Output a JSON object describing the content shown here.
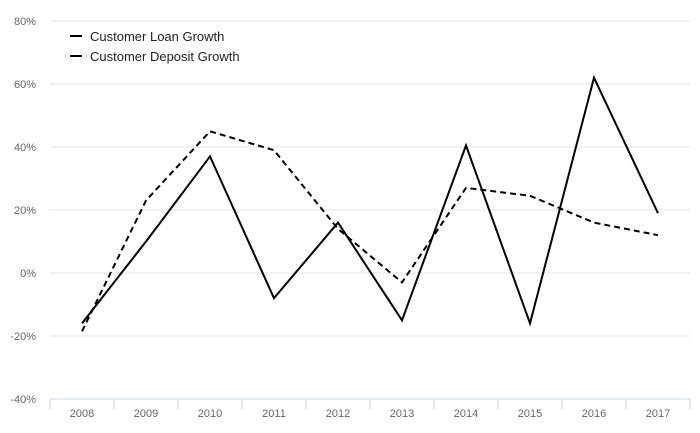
{
  "chart_data": {
    "type": "line",
    "categories": [
      "2008",
      "2009",
      "2010",
      "2011",
      "2012",
      "2013",
      "2014",
      "2015",
      "2016",
      "2017"
    ],
    "series": [
      {
        "name": "Customer Loan Growth",
        "style": "solid",
        "color": "#000000",
        "values": [
          -16,
          10,
          37,
          -8,
          16,
          -15,
          40.5,
          -16,
          62,
          19
        ]
      },
      {
        "name": "Customer Deposit Growth",
        "style": "dashed",
        "color": "#000000",
        "values": [
          -18.5,
          23,
          45,
          39,
          14,
          -3,
          27,
          24.5,
          16,
          12
        ]
      }
    ],
    "ylim": [
      -40,
      80
    ],
    "yticks": [
      -40,
      -20,
      0,
      20,
      40,
      60,
      80
    ],
    "ytick_labels": [
      "-40%",
      "-20%",
      "0%",
      "20%",
      "40%",
      "60%",
      "80%"
    ],
    "grid": true,
    "legend": "top-left",
    "title": "",
    "xlabel": "",
    "ylabel": ""
  }
}
